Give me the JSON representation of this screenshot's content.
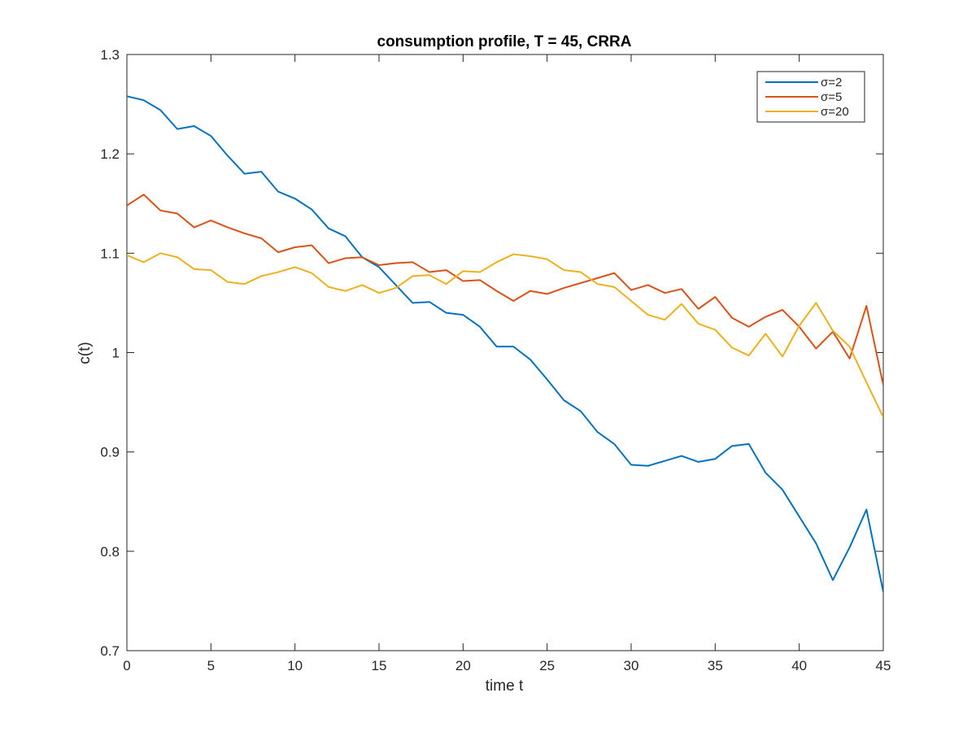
{
  "chart_data": {
    "type": "line",
    "title": "consumption profile, T = 45, CRRA",
    "xlabel": "time t",
    "ylabel": "c(t)",
    "xlim": [
      0,
      45
    ],
    "ylim": [
      0.7,
      1.3
    ],
    "xticks": [
      0,
      5,
      10,
      15,
      20,
      25,
      30,
      35,
      40,
      45
    ],
    "xtick_labels": [
      "0",
      "5",
      "10",
      "15",
      "20",
      "25",
      "30",
      "35",
      "40",
      "45"
    ],
    "yticks": [
      0.7,
      0.8,
      0.9,
      1.0,
      1.1,
      1.2,
      1.3
    ],
    "ytick_labels": [
      "0.7",
      "0.8",
      "0.9",
      "1",
      "1.1",
      "1.2",
      "1.3"
    ],
    "grid": false,
    "legend_position": "top-right",
    "x": [
      0,
      1,
      2,
      3,
      4,
      5,
      6,
      7,
      8,
      9,
      10,
      11,
      12,
      13,
      14,
      15,
      16,
      17,
      18,
      19,
      20,
      21,
      22,
      23,
      24,
      25,
      26,
      27,
      28,
      29,
      30,
      31,
      32,
      33,
      34,
      35,
      36,
      37,
      38,
      39,
      40,
      41,
      42,
      43,
      44,
      45
    ],
    "series": [
      {
        "name": "σ=2",
        "color": "#0072BD",
        "values": [
          1.258,
          1.254,
          1.244,
          1.225,
          1.228,
          1.218,
          1.198,
          1.18,
          1.182,
          1.162,
          1.155,
          1.144,
          1.125,
          1.117,
          1.096,
          1.086,
          1.068,
          1.05,
          1.051,
          1.04,
          1.038,
          1.026,
          1.006,
          1.006,
          0.993,
          0.973,
          0.952,
          0.941,
          0.92,
          0.908,
          0.887,
          0.886,
          0.891,
          0.896,
          0.89,
          0.893,
          0.906,
          0.908,
          0.879,
          0.862,
          0.835,
          0.808,
          0.771,
          0.804,
          0.842,
          0.759
        ]
      },
      {
        "name": "σ=5",
        "color": "#D95319",
        "values": [
          1.148,
          1.159,
          1.143,
          1.14,
          1.126,
          1.133,
          1.126,
          1.12,
          1.115,
          1.101,
          1.106,
          1.108,
          1.09,
          1.095,
          1.096,
          1.088,
          1.09,
          1.091,
          1.081,
          1.083,
          1.072,
          1.073,
          1.062,
          1.052,
          1.062,
          1.059,
          1.065,
          1.07,
          1.075,
          1.08,
          1.063,
          1.068,
          1.06,
          1.064,
          1.044,
          1.056,
          1.035,
          1.026,
          1.036,
          1.043,
          1.026,
          1.004,
          1.021,
          0.994,
          1.047,
          0.967
        ]
      },
      {
        "name": "σ=20",
        "color": "#EDB120",
        "values": [
          1.098,
          1.091,
          1.1,
          1.096,
          1.084,
          1.083,
          1.071,
          1.069,
          1.077,
          1.081,
          1.086,
          1.08,
          1.066,
          1.062,
          1.068,
          1.06,
          1.065,
          1.077,
          1.078,
          1.069,
          1.082,
          1.081,
          1.091,
          1.099,
          1.097,
          1.094,
          1.083,
          1.081,
          1.069,
          1.066,
          1.052,
          1.038,
          1.033,
          1.049,
          1.029,
          1.023,
          1.005,
          0.997,
          1.019,
          0.996,
          1.027,
          1.05,
          1.022,
          1.006,
          0.97,
          0.935
        ]
      }
    ]
  }
}
